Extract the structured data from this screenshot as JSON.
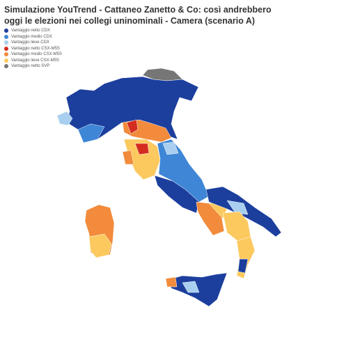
{
  "header": {
    "title": "Simulazione YouTrend - Cattaneo Zanetto & Co: così andrebbero oggi le elezioni nei collegi uninominali - Camera (scenario A)"
  },
  "legend": [
    {
      "label": "Vantaggio netto CDX",
      "color": "#1c3f9e"
    },
    {
      "label": "Vantaggio medio CDX",
      "color": "#3f86d6"
    },
    {
      "label": "Vantaggio lieve CDX",
      "color": "#a8cff0"
    },
    {
      "label": "Vantaggio netto CSX-M5S",
      "color": "#d42d20"
    },
    {
      "label": "Vantaggio medio CSX-M5S",
      "color": "#f28b3b"
    },
    {
      "label": "Vantaggio lieve CSX-M5S",
      "color": "#fcc95f"
    },
    {
      "label": "Vantaggio netto SVP",
      "color": "#767676"
    }
  ]
}
